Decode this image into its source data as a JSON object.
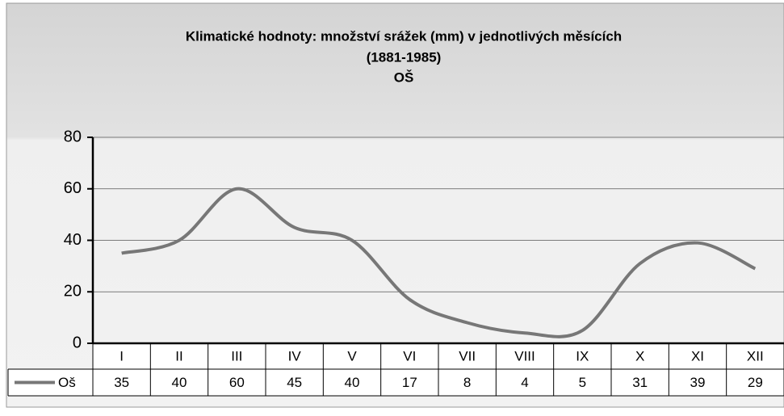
{
  "chart_data": {
    "type": "line",
    "title": [
      "Klimatické hodnoty: množství srážek (mm) v jednotlivých měsících",
      "(1881-1985)"
    ],
    "subtitle": "OŠ",
    "categories": [
      "I",
      "II",
      "III",
      "IV",
      "V",
      "VI",
      "VII",
      "VIII",
      "IX",
      "X",
      "XI",
      "XII"
    ],
    "series": [
      {
        "name": "Oš",
        "color": "#777777",
        "values": [
          35,
          40,
          60,
          45,
          40,
          17,
          8,
          4,
          5,
          31,
          39,
          29
        ]
      }
    ],
    "ylim": [
      0,
      80
    ],
    "yticks": [
      0,
      20,
      40,
      60,
      80
    ],
    "grid": true
  }
}
